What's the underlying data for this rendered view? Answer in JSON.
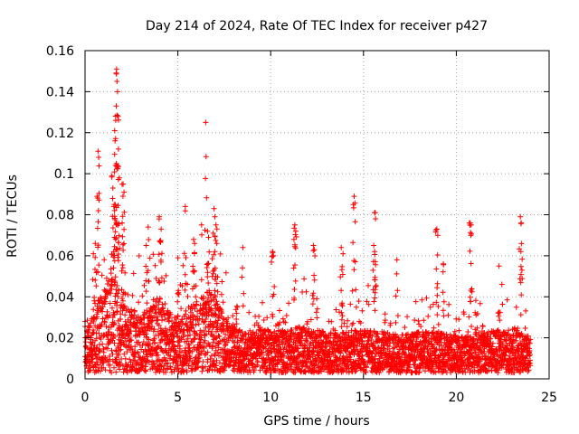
{
  "chart_data": {
    "type": "scatter",
    "title": "Day 214 of 2024, Rate Of TEC Index for receiver p427",
    "xlabel": "GPS time / hours",
    "ylabel": "ROTI / TECUs",
    "xlim": [
      0,
      25
    ],
    "ylim": [
      0,
      0.16
    ],
    "xticks": [
      "0",
      "5",
      "10",
      "15",
      "20",
      "25"
    ],
    "yticks": [
      "0",
      "0.02",
      "0.04",
      "0.06",
      "0.08",
      "0.1",
      "0.12",
      "0.14",
      "0.16"
    ],
    "grid": true,
    "marker": "plus",
    "series": [
      {
        "name": "ROTI",
        "color": "#ff0000",
        "baseline": [
          [
            0.0,
            0.012
          ],
          [
            0.5,
            0.02
          ],
          [
            1.0,
            0.025
          ],
          [
            1.6,
            0.03
          ],
          [
            2.2,
            0.02
          ],
          [
            3.0,
            0.018
          ],
          [
            4.0,
            0.022
          ],
          [
            5.0,
            0.016
          ],
          [
            6.0,
            0.022
          ],
          [
            6.8,
            0.026
          ],
          [
            7.5,
            0.018
          ],
          [
            8.5,
            0.012
          ],
          [
            9.5,
            0.014
          ],
          [
            10.5,
            0.012
          ],
          [
            11.5,
            0.014
          ],
          [
            12.5,
            0.013
          ],
          [
            13.5,
            0.012
          ],
          [
            14.5,
            0.013
          ],
          [
            15.5,
            0.013
          ],
          [
            16.5,
            0.012
          ],
          [
            17.5,
            0.012
          ],
          [
            18.5,
            0.013
          ],
          [
            19.5,
            0.012
          ],
          [
            20.5,
            0.011
          ],
          [
            21.5,
            0.013
          ],
          [
            22.5,
            0.013
          ],
          [
            23.5,
            0.012
          ],
          [
            24.0,
            0.011
          ]
        ],
        "peaks": [
          [
            0.7,
            0.111
          ],
          [
            0.65,
            0.089
          ],
          [
            0.72,
            0.082
          ],
          [
            0.55,
            0.066
          ],
          [
            0.45,
            0.061
          ],
          [
            1.45,
            0.099
          ],
          [
            1.5,
            0.093
          ],
          [
            1.55,
            0.084
          ],
          [
            1.6,
            0.121
          ],
          [
            1.62,
            0.116
          ],
          [
            1.65,
            0.126
          ],
          [
            1.68,
            0.133
          ],
          [
            1.7,
            0.151
          ],
          [
            1.72,
            0.145
          ],
          [
            1.75,
            0.14
          ],
          [
            1.78,
            0.128
          ],
          [
            1.8,
            0.112
          ],
          [
            1.85,
            0.098
          ],
          [
            2.05,
            0.095
          ],
          [
            2.1,
            0.091
          ],
          [
            2.0,
            0.076
          ],
          [
            3.4,
            0.074
          ],
          [
            3.3,
            0.065
          ],
          [
            4.0,
            0.079
          ],
          [
            4.1,
            0.073
          ],
          [
            4.05,
            0.067
          ],
          [
            5.4,
            0.084
          ],
          [
            5.0,
            0.059
          ],
          [
            5.85,
            0.068
          ],
          [
            5.9,
            0.066
          ],
          [
            6.5,
            0.125
          ],
          [
            6.6,
            0.072
          ],
          [
            6.65,
            0.069
          ],
          [
            6.95,
            0.083
          ],
          [
            7.0,
            0.079
          ],
          [
            7.05,
            0.075
          ],
          [
            6.9,
            0.071
          ],
          [
            7.1,
            0.066
          ],
          [
            8.5,
            0.064
          ],
          [
            10.1,
            0.062
          ],
          [
            10.15,
            0.06
          ],
          [
            11.3,
            0.075
          ],
          [
            11.35,
            0.072
          ],
          [
            11.25,
            0.068
          ],
          [
            12.3,
            0.065
          ],
          [
            12.35,
            0.063
          ],
          [
            13.8,
            0.064
          ],
          [
            13.9,
            0.061
          ],
          [
            14.5,
            0.089
          ],
          [
            14.45,
            0.085
          ],
          [
            15.6,
            0.081
          ],
          [
            15.65,
            0.078
          ],
          [
            15.55,
            0.065
          ],
          [
            15.6,
            0.062
          ],
          [
            16.8,
            0.058
          ],
          [
            18.95,
            0.073
          ],
          [
            19.0,
            0.07
          ],
          [
            19.3,
            0.056
          ],
          [
            20.75,
            0.076
          ],
          [
            20.8,
            0.075
          ],
          [
            20.78,
            0.07
          ],
          [
            22.3,
            0.055
          ],
          [
            23.45,
            0.079
          ],
          [
            23.5,
            0.076
          ],
          [
            23.48,
            0.062
          ]
        ]
      }
    ]
  }
}
